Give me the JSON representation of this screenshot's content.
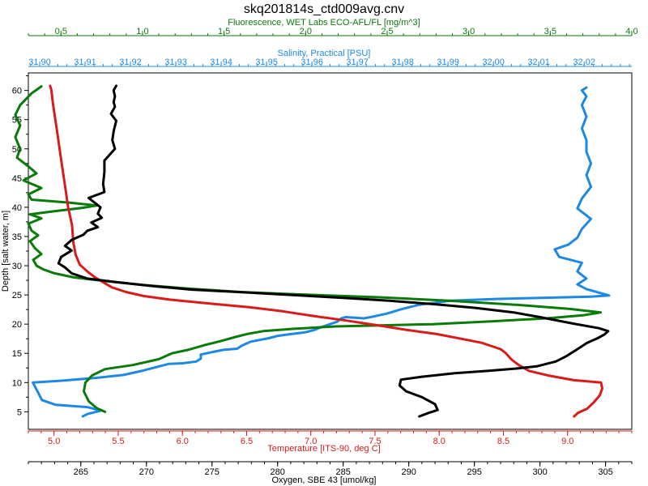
{
  "chart_data": {
    "type": "line",
    "title": "skq201814s_ctd009avg.cnv",
    "y_axis": {
      "label": "Depth [salt water, m]",
      "range": [
        63,
        2
      ],
      "ticks": [
        5,
        10,
        15,
        20,
        25,
        30,
        35,
        40,
        45,
        50,
        55,
        60
      ],
      "color": "#000000"
    },
    "x_axes": [
      {
        "key": "fluorescence",
        "label": "Fluorescence, WET Labs ECO-AFL/FL [mg/m^3]",
        "position": "top-1",
        "range": [
          0.3,
          4.0
        ],
        "ticks": [
          "0.5",
          "1.0",
          "1.5",
          "2.0",
          "2.5",
          "3.0",
          "3.5",
          "4.0"
        ],
        "color": "#0a7a0a"
      },
      {
        "key": "salinity",
        "label": "Salinity, Practical [PSU]",
        "position": "top-2",
        "range": [
          31.8975,
          32.0305
        ],
        "ticks": [
          "31,90",
          "31,91",
          "31,92",
          "31,93",
          "31,94",
          "31,95",
          "31,96",
          "31,97",
          "31,98",
          "31,99",
          "32,00",
          "32,01",
          "32,02"
        ],
        "color": "#1e88e5"
      },
      {
        "key": "temperature",
        "label": "Temperature [ITS-90, deg C]",
        "position": "bottom-1",
        "range": [
          4.8,
          9.5
        ],
        "ticks": [
          "5.0",
          "5.5",
          "6.0",
          "6.5",
          "7.0",
          "7.5",
          "8.0",
          "8.5",
          "9.0"
        ],
        "color": "#d81b1b"
      },
      {
        "key": "oxygen",
        "label": "Oxygen, SBE 43 [umol/kg]",
        "position": "bottom-2",
        "range": [
          261,
          307
        ],
        "ticks": [
          "265",
          "270",
          "275",
          "280",
          "285",
          "290",
          "295",
          "300",
          "305"
        ],
        "color": "#000000"
      }
    ],
    "series": [
      {
        "axis": "salinity",
        "color": "#1e88e5",
        "points": [
          [
            31.9095,
            4.2
          ],
          [
            31.9105,
            4.6
          ],
          [
            31.9135,
            5.2
          ],
          [
            31.9105,
            5.8
          ],
          [
            31.9035,
            6.2
          ],
          [
            31.9005,
            7.0
          ],
          [
            31.8995,
            8.5
          ],
          [
            31.8985,
            10.0
          ],
          [
            31.9045,
            10.3
          ],
          [
            31.9125,
            10.8
          ],
          [
            31.9185,
            11.3
          ],
          [
            31.9225,
            12.0
          ],
          [
            31.9265,
            12.8
          ],
          [
            31.9285,
            13.2
          ],
          [
            31.9315,
            13.3
          ],
          [
            31.9345,
            13.6
          ],
          [
            31.9355,
            14.1
          ],
          [
            31.9355,
            14.8
          ],
          [
            31.9385,
            15.3
          ],
          [
            31.9405,
            15.6
          ],
          [
            31.9435,
            15.8
          ],
          [
            31.9445,
            16.3
          ],
          [
            31.9465,
            17.0
          ],
          [
            31.9505,
            17.6
          ],
          [
            31.9525,
            18.0
          ],
          [
            31.9555,
            18.3
          ],
          [
            31.9585,
            18.6
          ],
          [
            31.9605,
            19.0
          ],
          [
            31.9625,
            19.6
          ],
          [
            31.9655,
            20.4
          ],
          [
            31.9665,
            21.0
          ],
          [
            31.9675,
            21.2
          ],
          [
            31.9715,
            21.0
          ],
          [
            31.9735,
            21.3
          ],
          [
            31.9765,
            21.8
          ],
          [
            31.9795,
            22.5
          ],
          [
            31.9835,
            23.3
          ],
          [
            31.9905,
            24.0
          ],
          [
            32.0005,
            24.3
          ],
          [
            32.0105,
            24.5
          ],
          [
            32.0215,
            24.7
          ],
          [
            32.0255,
            24.9
          ],
          [
            32.0205,
            26.0
          ],
          [
            32.0185,
            26.8
          ],
          [
            32.0205,
            27.8
          ],
          [
            32.0185,
            29.0
          ],
          [
            32.0195,
            30.5
          ],
          [
            32.0145,
            31.5
          ],
          [
            32.0135,
            32.8
          ],
          [
            32.0165,
            33.6
          ],
          [
            32.0185,
            34.8
          ],
          [
            32.0195,
            36.3
          ],
          [
            32.0215,
            38.0
          ],
          [
            32.0185,
            39.8
          ],
          [
            32.0195,
            41.5
          ],
          [
            32.0215,
            43.5
          ],
          [
            32.0205,
            45.5
          ],
          [
            32.0215,
            47.5
          ],
          [
            32.0205,
            49.5
          ],
          [
            32.0205,
            51.5
          ],
          [
            32.0195,
            53.5
          ],
          [
            32.0205,
            55.5
          ],
          [
            32.0195,
            57.5
          ],
          [
            32.0205,
            59.0
          ],
          [
            32.0195,
            60.0
          ],
          [
            32.0205,
            60.5
          ]
        ]
      },
      {
        "axis": "fluorescence",
        "color": "#0a7a0a",
        "points": [
          [
            0.77,
            5.0
          ],
          [
            0.72,
            5.6
          ],
          [
            0.67,
            6.8
          ],
          [
            0.64,
            8.5
          ],
          [
            0.65,
            10.0
          ],
          [
            0.69,
            11.2
          ],
          [
            0.77,
            12.3
          ],
          [
            0.94,
            13.0
          ],
          [
            1.1,
            14.0
          ],
          [
            1.18,
            15.0
          ],
          [
            1.28,
            15.6
          ],
          [
            1.38,
            16.4
          ],
          [
            1.48,
            17.1
          ],
          [
            1.57,
            17.8
          ],
          [
            1.64,
            18.3
          ],
          [
            1.74,
            18.8
          ],
          [
            1.93,
            19.2
          ],
          [
            2.18,
            19.6
          ],
          [
            2.48,
            19.8
          ],
          [
            2.78,
            20.0
          ],
          [
            3.15,
            20.5
          ],
          [
            3.48,
            21.0
          ],
          [
            3.7,
            21.5
          ],
          [
            3.81,
            22.0
          ],
          [
            3.62,
            22.6
          ],
          [
            3.3,
            23.3
          ],
          [
            2.88,
            24.0
          ],
          [
            2.45,
            24.6
          ],
          [
            1.95,
            25.1
          ],
          [
            1.6,
            25.5
          ],
          [
            1.28,
            26.1
          ],
          [
            1.0,
            26.7
          ],
          [
            0.76,
            27.4
          ],
          [
            0.58,
            28.0
          ],
          [
            0.46,
            28.7
          ],
          [
            0.39,
            29.4
          ],
          [
            0.35,
            30.0
          ],
          [
            0.33,
            31.0
          ],
          [
            0.38,
            32.0
          ],
          [
            0.34,
            33.0
          ],
          [
            0.31,
            34.2
          ],
          [
            0.36,
            35.2
          ],
          [
            0.32,
            36.0
          ],
          [
            0.3,
            37.2
          ],
          [
            0.38,
            38.1
          ],
          [
            0.31,
            38.8
          ],
          [
            0.45,
            39.3
          ],
          [
            0.63,
            39.9
          ],
          [
            0.72,
            40.3
          ],
          [
            0.55,
            40.8
          ],
          [
            0.32,
            41.3
          ],
          [
            0.3,
            42.2
          ],
          [
            0.38,
            43.3
          ],
          [
            0.27,
            44.6
          ],
          [
            0.35,
            45.8
          ],
          [
            0.3,
            47.0
          ],
          [
            0.23,
            48.5
          ],
          [
            0.25,
            50.0
          ],
          [
            0.22,
            52.0
          ],
          [
            0.25,
            54.0
          ],
          [
            0.22,
            55.8
          ],
          [
            0.25,
            57.5
          ],
          [
            0.32,
            59.5
          ],
          [
            0.36,
            60.3
          ],
          [
            0.38,
            60.7
          ]
        ]
      },
      {
        "axis": "temperature",
        "color": "#d81b1b",
        "points": [
          [
            9.05,
            4.2
          ],
          [
            9.08,
            4.8
          ],
          [
            9.15,
            5.5
          ],
          [
            9.2,
            6.5
          ],
          [
            9.25,
            7.8
          ],
          [
            9.27,
            9.0
          ],
          [
            9.26,
            10.0
          ],
          [
            9.05,
            10.4
          ],
          [
            8.85,
            11.2
          ],
          [
            8.7,
            12.0
          ],
          [
            8.62,
            13.0
          ],
          [
            8.56,
            14.0
          ],
          [
            8.52,
            15.0
          ],
          [
            8.48,
            15.7
          ],
          [
            8.44,
            16.0
          ],
          [
            8.33,
            16.8
          ],
          [
            8.17,
            17.5
          ],
          [
            7.98,
            18.3
          ],
          [
            7.75,
            19.0
          ],
          [
            7.52,
            19.8
          ],
          [
            7.28,
            20.6
          ],
          [
            7.02,
            21.4
          ],
          [
            6.78,
            22.2
          ],
          [
            6.52,
            22.9
          ],
          [
            6.22,
            23.5
          ],
          [
            5.9,
            24.2
          ],
          [
            5.7,
            24.8
          ],
          [
            5.56,
            25.5
          ],
          [
            5.45,
            26.3
          ],
          [
            5.38,
            27.2
          ],
          [
            5.32,
            28.0
          ],
          [
            5.26,
            29.0
          ],
          [
            5.2,
            30.2
          ],
          [
            5.17,
            31.8
          ],
          [
            5.15,
            34.0
          ],
          [
            5.14,
            37.0
          ],
          [
            5.11,
            40.0
          ],
          [
            5.09,
            43.0
          ],
          [
            5.07,
            46.0
          ],
          [
            5.05,
            49.0
          ],
          [
            5.03,
            52.0
          ],
          [
            5.01,
            55.0
          ],
          [
            4.99,
            58.0
          ],
          [
            4.98,
            60.0
          ],
          [
            4.97,
            60.8
          ]
        ]
      },
      {
        "axis": "oxygen",
        "color": "#000000",
        "points": [
          [
            290.8,
            4.2
          ],
          [
            291.5,
            4.8
          ],
          [
            292.2,
            5.3
          ],
          [
            292.0,
            6.3
          ],
          [
            291.0,
            7.5
          ],
          [
            289.8,
            8.5
          ],
          [
            289.3,
            9.5
          ],
          [
            289.4,
            10.5
          ],
          [
            291.0,
            11.0
          ],
          [
            293.5,
            11.6
          ],
          [
            296.0,
            12.0
          ],
          [
            298.2,
            12.4
          ],
          [
            299.8,
            12.8
          ],
          [
            301.2,
            13.6
          ],
          [
            302.0,
            14.5
          ],
          [
            302.7,
            15.5
          ],
          [
            303.6,
            16.8
          ],
          [
            304.4,
            17.6
          ],
          [
            304.9,
            18.2
          ],
          [
            305.2,
            18.8
          ],
          [
            304.5,
            19.3
          ],
          [
            302.5,
            20.1
          ],
          [
            300.0,
            21.2
          ],
          [
            298.0,
            22.0
          ],
          [
            295.0,
            22.8
          ],
          [
            292.0,
            23.4
          ],
          [
            288.5,
            24.0
          ],
          [
            285.0,
            24.5
          ],
          [
            281.0,
            25.0
          ],
          [
            277.0,
            25.5
          ],
          [
            273.5,
            25.9
          ],
          [
            270.5,
            26.5
          ],
          [
            267.7,
            27.2
          ],
          [
            265.5,
            27.8
          ],
          [
            264.3,
            28.7
          ],
          [
            263.8,
            29.7
          ],
          [
            263.3,
            30.4
          ],
          [
            263.5,
            31.5
          ],
          [
            264.3,
            32.6
          ],
          [
            263.8,
            33.4
          ],
          [
            264.3,
            34.4
          ],
          [
            265.2,
            35.3
          ],
          [
            265.5,
            36.0
          ],
          [
            266.3,
            36.6
          ],
          [
            265.8,
            37.4
          ],
          [
            266.6,
            38.2
          ],
          [
            266.3,
            38.9
          ],
          [
            266.5,
            40.0
          ],
          [
            265.6,
            41.6
          ],
          [
            266.8,
            42.6
          ],
          [
            266.7,
            44.0
          ],
          [
            266.8,
            46.0
          ],
          [
            266.8,
            48.0
          ],
          [
            267.2,
            49.0
          ],
          [
            267.6,
            50.0
          ],
          [
            267.4,
            51.5
          ],
          [
            267.5,
            53.0
          ],
          [
            267.7,
            54.8
          ],
          [
            267.3,
            56.0
          ],
          [
            267.6,
            57.2
          ],
          [
            267.5,
            58.0
          ],
          [
            267.6,
            59.0
          ],
          [
            267.5,
            60.0
          ],
          [
            267.7,
            60.8
          ]
        ]
      }
    ]
  }
}
